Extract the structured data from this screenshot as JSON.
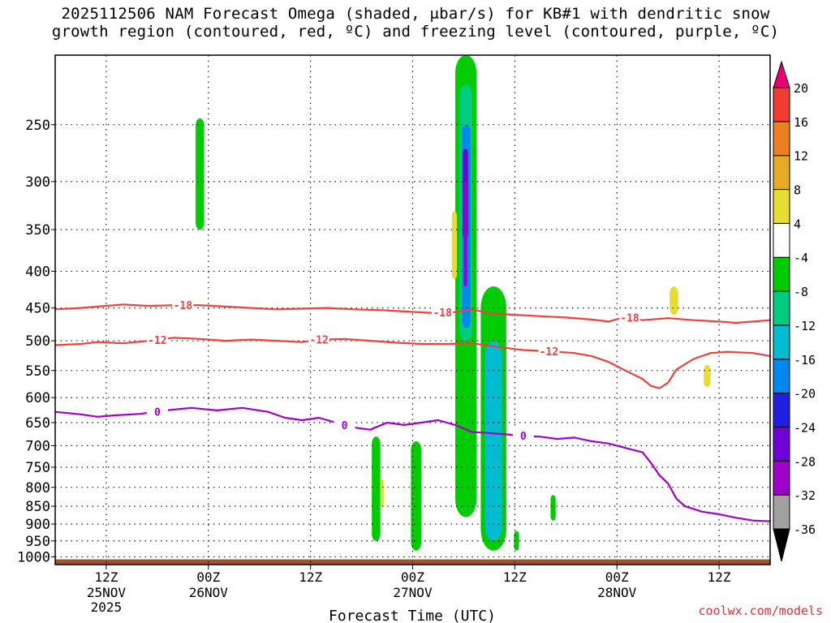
{
  "title": {
    "line1": "2025112506 NAM Forecast Omega (shaded, μbar/s) for KB#1 with dendritic snow",
    "line2": "growth region (contoured, red, ºC) and freezing level (contoured, purple, ºC)"
  },
  "credit": "coolwx.com/models",
  "chart_data": {
    "type": "cross-section",
    "xlabel": "Forecast Time (UTC)",
    "x_axis": {
      "unit": "forecast hour",
      "range": [
        0,
        84
      ],
      "ticks": [
        {
          "hour": 6,
          "label": "12Z",
          "sub": [
            "25NOV",
            "2025"
          ]
        },
        {
          "hour": 18,
          "label": "00Z",
          "sub": [
            "26NOV"
          ]
        },
        {
          "hour": 30,
          "label": "12Z",
          "sub": []
        },
        {
          "hour": 42,
          "label": "00Z",
          "sub": [
            "27NOV"
          ]
        },
        {
          "hour": 54,
          "label": "12Z",
          "sub": []
        },
        {
          "hour": 66,
          "label": "00Z",
          "sub": [
            "28NOV"
          ]
        },
        {
          "hour": 78,
          "label": "12Z",
          "sub": []
        }
      ]
    },
    "y_axis": {
      "unit": "hPa",
      "scale": "log-pressure",
      "range": [
        1025,
        200
      ],
      "ticks": [
        250,
        300,
        350,
        400,
        450,
        500,
        550,
        600,
        650,
        700,
        750,
        800,
        850,
        900,
        950,
        1000
      ]
    },
    "grid": true,
    "colorbar": {
      "levels": [
        -36,
        -32,
        -28,
        -24,
        -20,
        -16,
        -12,
        -8,
        -4,
        4,
        8,
        12,
        16,
        20
      ],
      "colors": [
        "#000000",
        "#a0a0a0",
        "#9e00c8",
        "#7000d8",
        "#2020e0",
        "#0088f0",
        "#00bcd0",
        "#00cc80",
        "#00cc00",
        "#ffffff",
        "#e6dc32",
        "#e6aa28",
        "#ee7f1e",
        "#f03c32",
        "#e8006e"
      ]
    },
    "contours": [
      {
        "label": "-18",
        "color": "#ef4040",
        "points": [
          [
            0,
            452
          ],
          [
            3,
            450
          ],
          [
            5,
            448
          ],
          [
            8,
            445
          ],
          [
            11,
            447
          ],
          [
            14,
            446
          ],
          [
            17,
            446
          ],
          [
            20,
            448
          ],
          [
            23,
            450
          ],
          [
            26,
            452
          ],
          [
            29,
            451
          ],
          [
            32,
            450
          ],
          [
            35,
            452
          ],
          [
            38,
            453
          ],
          [
            41,
            455
          ],
          [
            44,
            457
          ],
          [
            47,
            456
          ],
          [
            49,
            452
          ],
          [
            51,
            458
          ],
          [
            54,
            460
          ],
          [
            57,
            462
          ],
          [
            60,
            464
          ],
          [
            63,
            467
          ],
          [
            65,
            470
          ],
          [
            67,
            463
          ],
          [
            69,
            468
          ],
          [
            72,
            465
          ],
          [
            75,
            468
          ],
          [
            78,
            470
          ],
          [
            80,
            472
          ],
          [
            82,
            470
          ],
          [
            84,
            468
          ]
        ],
        "label_hours": [
          15,
          45.5,
          67.5
        ]
      },
      {
        "label": "-12",
        "color": "#ef4040",
        "points": [
          [
            0,
            507
          ],
          [
            3,
            505
          ],
          [
            5,
            502
          ],
          [
            8,
            504
          ],
          [
            11,
            500
          ],
          [
            14,
            495
          ],
          [
            17,
            497
          ],
          [
            20,
            500
          ],
          [
            23,
            498
          ],
          [
            26,
            500
          ],
          [
            29,
            502
          ],
          [
            31,
            498
          ],
          [
            34,
            497
          ],
          [
            37,
            500
          ],
          [
            40,
            503
          ],
          [
            43,
            505
          ],
          [
            46,
            505
          ],
          [
            49,
            504
          ],
          [
            52,
            510
          ],
          [
            55,
            515
          ],
          [
            58,
            517
          ],
          [
            61,
            520
          ],
          [
            63,
            525
          ],
          [
            65,
            535
          ],
          [
            67,
            550
          ],
          [
            69,
            565
          ],
          [
            70,
            578
          ],
          [
            71,
            582
          ],
          [
            72,
            572
          ],
          [
            73,
            548
          ],
          [
            75,
            530
          ],
          [
            77,
            520
          ],
          [
            79,
            518
          ],
          [
            82,
            520
          ],
          [
            84,
            525
          ]
        ],
        "label_hours": [
          12,
          31,
          58
        ]
      },
      {
        "label": "0",
        "color": "#a000c8",
        "points": [
          [
            0,
            628
          ],
          [
            3,
            633
          ],
          [
            5,
            638
          ],
          [
            7,
            635
          ],
          [
            10,
            632
          ],
          [
            13,
            625
          ],
          [
            16,
            620
          ],
          [
            19,
            625
          ],
          [
            22,
            620
          ],
          [
            25,
            628
          ],
          [
            27,
            640
          ],
          [
            29,
            645
          ],
          [
            31,
            640
          ],
          [
            33,
            650
          ],
          [
            35,
            660
          ],
          [
            37,
            665
          ],
          [
            39,
            650
          ],
          [
            41,
            655
          ],
          [
            43,
            650
          ],
          [
            45,
            645
          ],
          [
            47,
            655
          ],
          [
            49,
            670
          ],
          [
            51,
            672
          ],
          [
            53,
            675
          ],
          [
            55,
            678
          ],
          [
            57,
            680
          ],
          [
            59,
            685
          ],
          [
            61,
            682
          ],
          [
            63,
            690
          ],
          [
            65,
            695
          ],
          [
            67,
            705
          ],
          [
            69,
            715
          ],
          [
            70,
            740
          ],
          [
            71,
            770
          ],
          [
            72,
            790
          ],
          [
            73,
            830
          ],
          [
            74,
            850
          ],
          [
            76,
            865
          ],
          [
            78,
            872
          ],
          [
            80,
            882
          ],
          [
            82,
            890
          ],
          [
            84,
            892
          ]
        ],
        "label_hours": [
          12,
          34,
          55
        ]
      }
    ],
    "omega_regions": [
      {
        "level": -4,
        "hour_range": [
          16.5,
          17.5
        ],
        "pressure_range": [
          245,
          350
        ]
      },
      {
        "level": -4,
        "hour_range": [
          37.2,
          38.2
        ],
        "pressure_range": [
          680,
          950
        ]
      },
      {
        "level": -4,
        "hour_range": [
          41.8,
          43
        ],
        "pressure_range": [
          690,
          980
        ]
      },
      {
        "level": -4,
        "hour_range": [
          47,
          49.5
        ],
        "pressure_range": [
          200,
          880
        ]
      },
      {
        "level": -4,
        "hour_range": [
          50,
          53
        ],
        "pressure_range": [
          420,
          980
        ]
      },
      {
        "level": -4,
        "hour_range": [
          53.9,
          54.5
        ],
        "pressure_range": [
          920,
          980
        ]
      },
      {
        "level": -4,
        "hour_range": [
          58.2,
          58.8
        ],
        "pressure_range": [
          820,
          890
        ]
      },
      {
        "level": -8,
        "hour_range": [
          47.5,
          49
        ],
        "pressure_range": [
          220,
          500
        ]
      },
      {
        "level": -12,
        "hour_range": [
          50.5,
          52.5
        ],
        "pressure_range": [
          500,
          950
        ]
      },
      {
        "level": -16,
        "hour_range": [
          47.8,
          48.8
        ],
        "pressure_range": [
          250,
          480
        ]
      },
      {
        "level": -24,
        "hour_range": [
          47.9,
          48.5
        ],
        "pressure_range": [
          270,
          360
        ]
      },
      {
        "level": -28,
        "hour_range": [
          48,
          48.4
        ],
        "pressure_range": [
          300,
          420
        ]
      },
      {
        "level": 4,
        "hour_range": [
          46.6,
          47.2
        ],
        "pressure_range": [
          330,
          410
        ]
      },
      {
        "level": 4,
        "hour_range": [
          38.3,
          38.6
        ],
        "pressure_range": [
          780,
          850
        ]
      },
      {
        "level": 4,
        "hour_range": [
          72.2,
          73.2
        ],
        "pressure_range": [
          420,
          460
        ]
      },
      {
        "level": 4,
        "hour_range": [
          76.2,
          77
        ],
        "pressure_range": [
          540,
          580
        ]
      }
    ],
    "terrain": {
      "color": "#a0522d",
      "pressure_range": [
        1008,
        1025
      ]
    }
  }
}
